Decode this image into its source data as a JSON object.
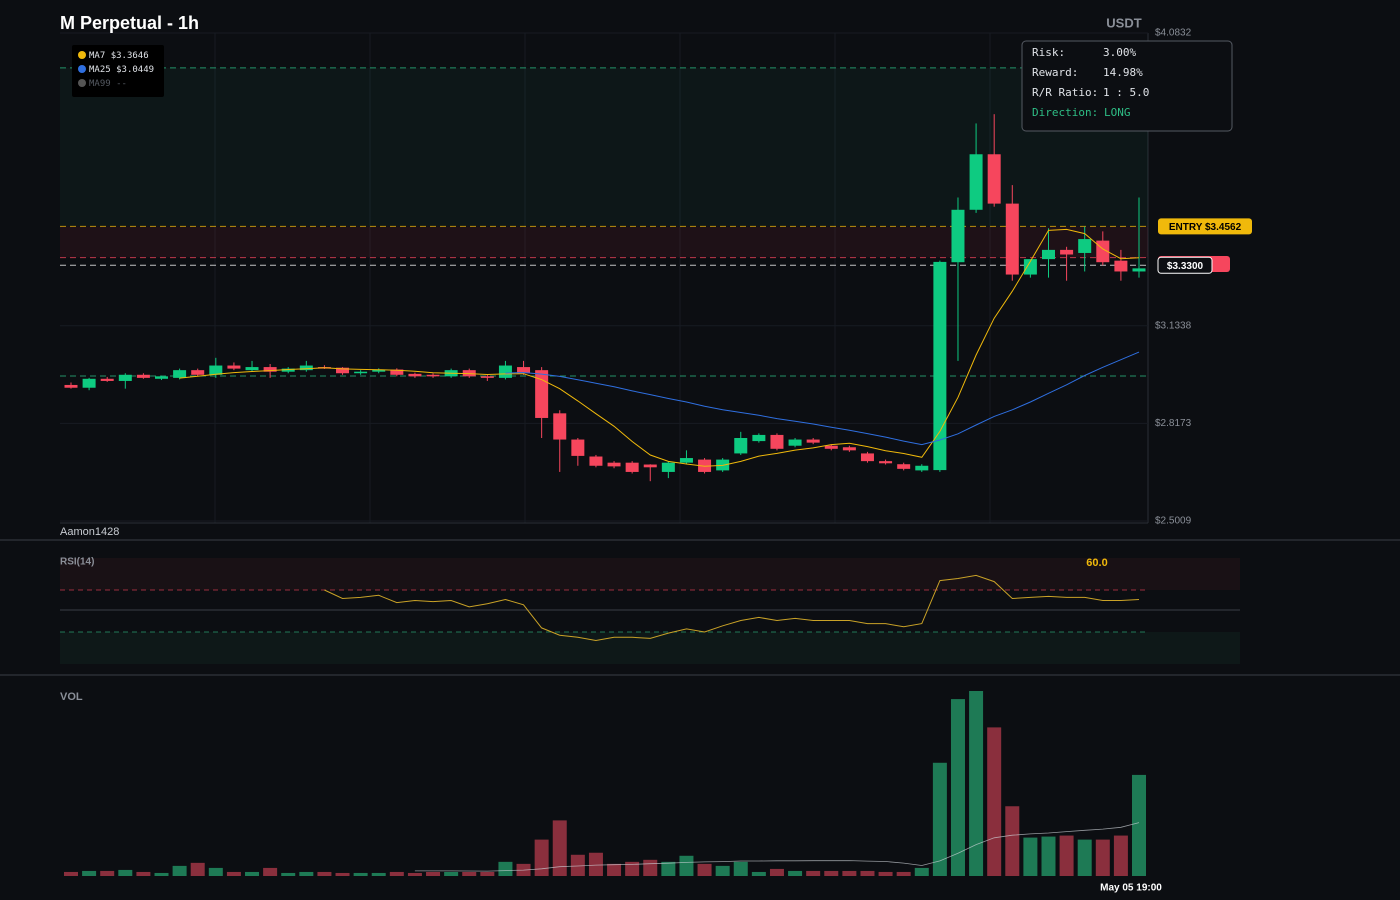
{
  "header": {
    "title": "M Perpetual - 1h",
    "quote": "USDT",
    "watermark": "Aamon1428"
  },
  "legend": [
    {
      "name": "MA7",
      "value_label": "$3.3646",
      "color": "#f0b90b"
    },
    {
      "name": "MA25",
      "value_label": "$3.0449",
      "color": "#2f6fe0"
    },
    {
      "name": "MA99",
      "value_label": "--",
      "color": "#555555"
    }
  ],
  "risk_panel": {
    "rows": [
      {
        "label": "Risk:",
        "value": "3.00%"
      },
      {
        "label": "Reward:",
        "value": "14.98%"
      },
      {
        "label": "R/R Ratio:",
        "value": "1 : 5.0"
      },
      {
        "label": "Direction:",
        "value": "LONG"
      }
    ]
  },
  "chart_data": [
    {
      "type": "candlestick",
      "up_color": "#0ecb81",
      "down_color": "#f6465d",
      "grid": true,
      "ylim": [
        2.5009,
        4.0832
      ],
      "yticks": [
        {
          "value": 4.0832,
          "label": "$4.0832"
        },
        {
          "value": 3.1338,
          "label": "$3.1338"
        },
        {
          "value": 2.8173,
          "label": "$2.8173"
        },
        {
          "value": 2.5009,
          "label": "$2.5009"
        }
      ],
      "open": [
        2.942,
        2.933,
        2.962,
        2.955,
        2.975,
        2.962,
        2.965,
        2.99,
        2.975,
        3.005,
        2.99,
        3.0,
        2.985,
        2.99,
        3.0,
        2.998,
        2.98,
        2.985,
        2.992,
        2.978,
        2.975,
        2.97,
        2.99,
        2.97,
        2.965,
        3.0,
        2.99,
        2.85,
        2.765,
        2.71,
        2.69,
        2.69,
        2.684,
        2.66,
        2.69,
        2.7,
        2.665,
        2.72,
        2.76,
        2.78,
        2.745,
        2.765,
        2.745,
        2.74,
        2.72,
        2.695,
        2.685,
        2.665,
        2.666,
        3.34,
        3.51,
        3.69,
        3.53,
        3.3,
        3.35,
        3.38,
        3.37,
        3.41,
        3.345,
        3.31
      ],
      "high": [
        2.95,
        2.965,
        2.968,
        2.98,
        2.98,
        2.972,
        2.995,
        2.995,
        3.03,
        3.015,
        3.02,
        3.01,
        3.0,
        3.02,
        3.006,
        3.0,
        2.99,
        2.996,
        2.996,
        2.982,
        2.98,
        2.995,
        2.995,
        2.975,
        3.02,
        3.02,
        3.0,
        2.86,
        2.77,
        2.715,
        2.695,
        2.695,
        2.685,
        2.695,
        2.73,
        2.705,
        2.705,
        2.79,
        2.785,
        2.785,
        2.77,
        2.77,
        2.75,
        2.745,
        2.725,
        2.7,
        2.69,
        2.685,
        3.345,
        3.55,
        3.79,
        3.82,
        3.59,
        3.35,
        3.45,
        3.39,
        3.455,
        3.44,
        3.38,
        3.55
      ],
      "low": [
        2.93,
        2.925,
        2.952,
        2.93,
        2.962,
        2.958,
        2.96,
        2.97,
        2.965,
        2.99,
        2.985,
        2.965,
        2.98,
        2.985,
        2.994,
        2.975,
        2.975,
        2.98,
        2.97,
        2.965,
        2.965,
        2.965,
        2.965,
        2.955,
        2.96,
        2.975,
        2.77,
        2.66,
        2.68,
        2.675,
        2.672,
        2.655,
        2.63,
        2.64,
        2.685,
        2.655,
        2.66,
        2.715,
        2.755,
        2.73,
        2.74,
        2.75,
        2.73,
        2.725,
        2.69,
        2.684,
        2.665,
        2.66,
        2.66,
        3.02,
        3.5,
        3.52,
        3.28,
        3.29,
        3.29,
        3.28,
        3.31,
        3.33,
        3.28,
        3.29
      ],
      "close": [
        2.933,
        2.962,
        2.955,
        2.975,
        2.965,
        2.97,
        2.99,
        2.975,
        3.005,
        2.995,
        3.0,
        2.985,
        2.995,
        3.005,
        2.998,
        2.98,
        2.985,
        2.992,
        2.975,
        2.97,
        2.97,
        2.99,
        2.97,
        2.965,
        3.005,
        2.98,
        2.835,
        2.765,
        2.712,
        2.68,
        2.678,
        2.66,
        2.675,
        2.69,
        2.705,
        2.66,
        2.7,
        2.77,
        2.78,
        2.735,
        2.765,
        2.755,
        2.735,
        2.73,
        2.695,
        2.688,
        2.67,
        2.68,
        3.341,
        3.51,
        3.69,
        3.53,
        3.3,
        3.35,
        3.38,
        3.365,
        3.415,
        3.34,
        3.31,
        3.32
      ],
      "levels": [
        {
          "value": 3.97,
          "color": "#2ebd85"
        },
        {
          "value": 3.4562,
          "label": "ENTRY $3.4562",
          "color": "#f0b90b"
        },
        {
          "value": 3.355,
          "color": "#f6465d"
        },
        {
          "value": 3.33,
          "label": "$3.3300",
          "color": "#ffffff"
        },
        {
          "value": 2.971,
          "color": "#2ebd85"
        }
      ]
    },
    {
      "type": "line",
      "title": "RSI(14)",
      "color": "#c9a227",
      "values": [
        null,
        null,
        null,
        null,
        null,
        null,
        null,
        null,
        null,
        null,
        null,
        null,
        null,
        null,
        69,
        61,
        62,
        64,
        57,
        59,
        58,
        59,
        53,
        56,
        60,
        55,
        33,
        26,
        24,
        21,
        24,
        24,
        23,
        28,
        32,
        29,
        35,
        40,
        43,
        40,
        42,
        40,
        40,
        40,
        37,
        37,
        34,
        37,
        78,
        80,
        83,
        77,
        61,
        62,
        63,
        62,
        62,
        59,
        59,
        60
      ],
      "value_label": "60.0"
    },
    {
      "type": "bar",
      "title": "VOL",
      "x_label": "May 05 19:00",
      "values": [
        4,
        5,
        5,
        6,
        4,
        3,
        10,
        13,
        8,
        4,
        4,
        8,
        3,
        4,
        4,
        3,
        3,
        3,
        4,
        3,
        4,
        4,
        4,
        4,
        14,
        12,
        36,
        55,
        21,
        23,
        12,
        14,
        16,
        14,
        20,
        12,
        10,
        14,
        4,
        7,
        5,
        5,
        5,
        5,
        5,
        4,
        4,
        8,
        112,
        175,
        183,
        147,
        69,
        38,
        39,
        40,
        36,
        36,
        40,
        100
      ]
    }
  ]
}
